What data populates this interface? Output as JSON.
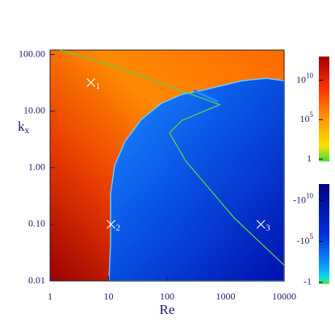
{
  "chart_data": {
    "type": "heatmap",
    "xlabel": "Re",
    "ylabel": "k",
    "ylabel_sub": "x",
    "log_x": true,
    "log_y": true,
    "xlim": [
      1,
      10000
    ],
    "ylim": [
      0.01,
      120
    ],
    "xticks": [
      1,
      10,
      100,
      1000,
      10000
    ],
    "yticks": [
      {
        "value": 0.01,
        "label": "0.01"
      },
      {
        "value": 0.1,
        "label": "0.10"
      },
      {
        "value": 1,
        "label": "1.00"
      },
      {
        "value": 10,
        "label": "10.00"
      },
      {
        "value": 100,
        "label": "100.00"
      }
    ],
    "series": [
      {
        "color": "#5fd04a",
        "x": [
          1.5,
          16,
          335,
          790,
          177,
          110,
          210,
          1400,
          10000
        ],
        "values": [
          120,
          57,
          18,
          13,
          6.8,
          4.1,
          1.3,
          0.13,
          0.019
        ]
      }
    ],
    "points": {
      "color": "#ffffff",
      "x": [
        5,
        11,
        4000
      ],
      "values": [
        32,
        0.1,
        0.1
      ],
      "labels": [
        "1",
        "2",
        "3"
      ]
    },
    "colorbars": [
      {
        "clim": [
          0.5,
          10000000000000.0
        ],
        "ticks": [
          {
            "value": 10000000000.0,
            "label": "10",
            "exp": "10"
          },
          {
            "value": 100000.0,
            "label": "10",
            "exp": "5"
          },
          1
        ]
      },
      {
        "clim": [
          -0.6,
          -1000000000000.0
        ],
        "ticks": [
          {
            "value": -10000000000.0,
            "label": "-10",
            "exp": "10"
          },
          {
            "value": -100000.0,
            "label": "-10",
            "exp": "5"
          },
          -1
        ]
      }
    ]
  }
}
